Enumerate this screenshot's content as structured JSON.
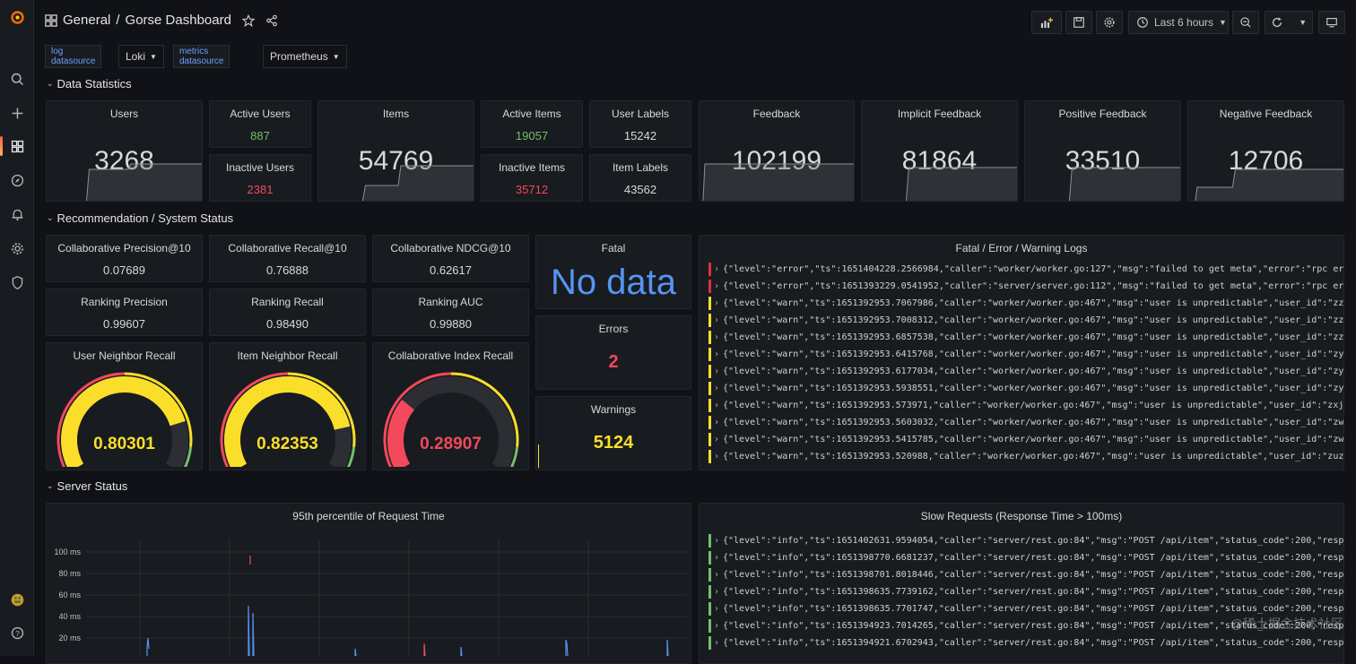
{
  "breadcrumb": {
    "folder": "General",
    "separator": "/",
    "dashboard": "Gorse Dashboard"
  },
  "timepicker": {
    "label": "Last 6 hours"
  },
  "variables": [
    {
      "label": "log datasource",
      "value": "Loki"
    },
    {
      "label": "metrics datasource",
      "value": "Prometheus"
    }
  ],
  "rows": {
    "data": "Data Statistics",
    "rec": "Recommendation / System Status",
    "server": "Server Status"
  },
  "stats": {
    "users": {
      "title": "Users",
      "value": "3268"
    },
    "active_users": {
      "title": "Active Users",
      "value": "887"
    },
    "inactive_users": {
      "title": "Inactive Users",
      "value": "2381"
    },
    "items": {
      "title": "Items",
      "value": "54769"
    },
    "active_items": {
      "title": "Active Items",
      "value": "19057"
    },
    "inactive_items": {
      "title": "Inactive Items",
      "value": "35712"
    },
    "user_labels": {
      "title": "User Labels",
      "value": "15242"
    },
    "item_labels": {
      "title": "Item Labels",
      "value": "43562"
    },
    "feedback": {
      "title": "Feedback",
      "value": "102199"
    },
    "implicit": {
      "title": "Implicit Feedback",
      "value": "81864"
    },
    "positive": {
      "title": "Positive Feedback",
      "value": "33510"
    },
    "negative": {
      "title": "Negative Feedback",
      "value": "12706"
    }
  },
  "metrics": {
    "cp": {
      "title": "Collaborative Precision@10",
      "value": "0.07689"
    },
    "cr": {
      "title": "Collaborative Recall@10",
      "value": "0.76888"
    },
    "cn": {
      "title": "Collaborative NDCG@10",
      "value": "0.62617"
    },
    "rp": {
      "title": "Ranking Precision",
      "value": "0.99607"
    },
    "rr": {
      "title": "Ranking Recall",
      "value": "0.98490"
    },
    "ra": {
      "title": "Ranking AUC",
      "value": "0.99880"
    }
  },
  "gauges": [
    {
      "title": "User Neighbor Recall",
      "value": "0.80301",
      "level": 0.80301,
      "color": "#fade2a"
    },
    {
      "title": "Item Neighbor Recall",
      "value": "0.82353",
      "level": 0.82353,
      "color": "#fade2a"
    },
    {
      "title": "Collaborative Index Recall",
      "value": "0.28907",
      "level": 0.28907,
      "color": "#f2495c"
    }
  ],
  "status": {
    "fatal": {
      "title": "Fatal",
      "value": "No data"
    },
    "errors": {
      "title": "Errors",
      "value": "2"
    },
    "warnings": {
      "title": "Warnings",
      "value": "5124"
    }
  },
  "logs_panel": {
    "title": "Fatal / Error / Warning Logs",
    "lines": [
      {
        "level": "error",
        "text": "{\"level\":\"error\",\"ts\":1651404228.2566984,\"caller\":\"worker/worker.go:127\",\"msg\":\"failed to get meta\",\"error\":\"rpc error:"
      },
      {
        "level": "error",
        "text": "{\"level\":\"error\",\"ts\":1651393229.0541952,\"caller\":\"server/server.go:112\",\"msg\":\"failed to get meta\",\"error\":\"rpc error:"
      },
      {
        "level": "warn",
        "text": "{\"level\":\"warn\",\"ts\":1651392953.7067986,\"caller\":\"worker/worker.go:467\",\"msg\":\"user is unpredictable\",\"user_id\":\"zzz405"
      },
      {
        "level": "warn",
        "text": "{\"level\":\"warn\",\"ts\":1651392953.7008312,\"caller\":\"worker/worker.go:467\",\"msg\":\"user is unpredictable\",\"user_id\":\"zzxcvb"
      },
      {
        "level": "warn",
        "text": "{\"level\":\"warn\",\"ts\":1651392953.6857538,\"caller\":\"worker/worker.go:467\",\"msg\":\"user is unpredictable\",\"user_id\":\"zzmmzz"
      },
      {
        "level": "warn",
        "text": "{\"level\":\"warn\",\"ts\":1651392953.6415768,\"caller\":\"worker/worker.go:467\",\"msg\":\"user is unpredictable\",\"user_id\":\"zytomo"
      },
      {
        "level": "warn",
        "text": "{\"level\":\"warn\",\"ts\":1651392953.6177034,\"caller\":\"worker/worker.go:467\",\"msg\":\"user is unpredictable\",\"user_id\":\"zyszys"
      },
      {
        "level": "warn",
        "text": "{\"level\":\"warn\",\"ts\":1651392953.5938551,\"caller\":\"worker/worker.go:467\",\"msg\":\"user is unpredictable\",\"user_id\":\"zyedid"
      },
      {
        "level": "warn",
        "text": "{\"level\":\"warn\",\"ts\":1651392953.573971,\"caller\":\"worker/worker.go:467\",\"msg\":\"user is unpredictable\",\"user_id\":\"zxj9635"
      },
      {
        "level": "warn",
        "text": "{\"level\":\"warn\",\"ts\":1651392953.5603032,\"caller\":\"worker/worker.go:467\",\"msg\":\"user is unpredictable\",\"user_id\":\"zwicky"
      },
      {
        "level": "warn",
        "text": "{\"level\":\"warn\",\"ts\":1651392953.5415785,\"caller\":\"worker/worker.go:467\",\"msg\":\"user is unpredictable\",\"user_id\":\"zwh880"
      },
      {
        "level": "warn",
        "text": "{\"level\":\"warn\",\"ts\":1651392953.520988,\"caller\":\"worker/worker.go:467\",\"msg\":\"user is unpredictable\",\"user_id\":\"zuzoovn"
      }
    ]
  },
  "request_panel": {
    "title": "95th percentile of Request Time",
    "yticks": [
      "100 ms",
      "80 ms",
      "60 ms",
      "40 ms",
      "20 ms"
    ]
  },
  "slow_panel": {
    "title": "Slow Requests (Response Time > 100ms)",
    "lines": [
      {
        "level": "info",
        "text": "{\"level\":\"info\",\"ts\":1651402631.9594054,\"caller\":\"server/rest.go:84\",\"msg\":\"POST /api/item\",\"status_code\":200,\"response"
      },
      {
        "level": "info",
        "text": "{\"level\":\"info\",\"ts\":1651398770.6681237,\"caller\":\"server/rest.go:84\",\"msg\":\"POST /api/item\",\"status_code\":200,\"response"
      },
      {
        "level": "info",
        "text": "{\"level\":\"info\",\"ts\":1651398701.8018446,\"caller\":\"server/rest.go:84\",\"msg\":\"POST /api/item\",\"status_code\":200,\"response"
      },
      {
        "level": "info",
        "text": "{\"level\":\"info\",\"ts\":1651398635.7739162,\"caller\":\"server/rest.go:84\",\"msg\":\"POST /api/item\",\"status_code\":200,\"response"
      },
      {
        "level": "info",
        "text": "{\"level\":\"info\",\"ts\":1651398635.7701747,\"caller\":\"server/rest.go:84\",\"msg\":\"POST /api/item\",\"status_code\":200,\"response"
      },
      {
        "level": "info",
        "text": "{\"level\":\"info\",\"ts\":1651394923.7014265,\"caller\":\"server/rest.go:84\",\"msg\":\"POST /api/item\",\"status_code\":200,\"response"
      },
      {
        "level": "info",
        "text": "{\"level\":\"info\",\"ts\":1651394921.6702943,\"caller\":\"server/rest.go:84\",\"msg\":\"POST /api/item\",\"status_code\":200,\"response"
      }
    ]
  },
  "watermark": "@稀土掘金技术社区",
  "colors": {
    "green": "#73bf69",
    "red": "#f2495c",
    "yellow": "#fade2a",
    "blue": "#5794f2"
  }
}
